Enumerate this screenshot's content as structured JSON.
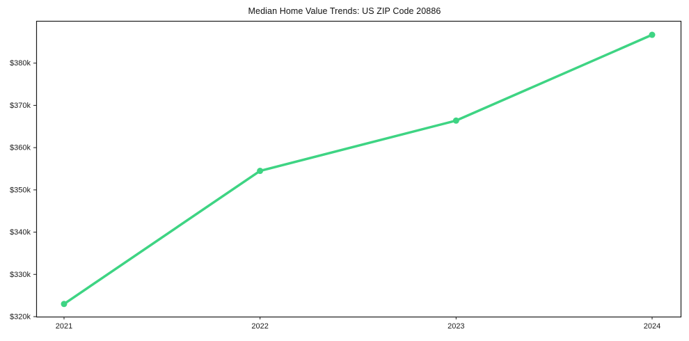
{
  "figure": {
    "background": "#ffffff",
    "text_color": "#1a1a1a"
  },
  "chart_data": {
    "type": "line",
    "title": "Median Home Value Trends: US ZIP Code 20886",
    "x": [
      2021,
      2022,
      2023,
      2024
    ],
    "xtick_labels": [
      "2021",
      "2022",
      "2023",
      "2024"
    ],
    "series": [
      {
        "name": "Median Home Value",
        "values": [
          323000,
          354500,
          366400,
          386700
        ]
      }
    ],
    "xlabel": "",
    "ylabel": "",
    "ylim": [
      320000,
      390000
    ],
    "yticks": [
      320000,
      330000,
      340000,
      350000,
      360000,
      370000,
      380000
    ],
    "ytick_labels": [
      "$320k",
      "$330k",
      "$340k",
      "$350k",
      "$360k",
      "$370k",
      "$380k"
    ],
    "grid": false,
    "legend": "none",
    "line_color": "#3ed483",
    "marker": "circle",
    "line_width": 3.5,
    "marker_radius": 4.5
  }
}
